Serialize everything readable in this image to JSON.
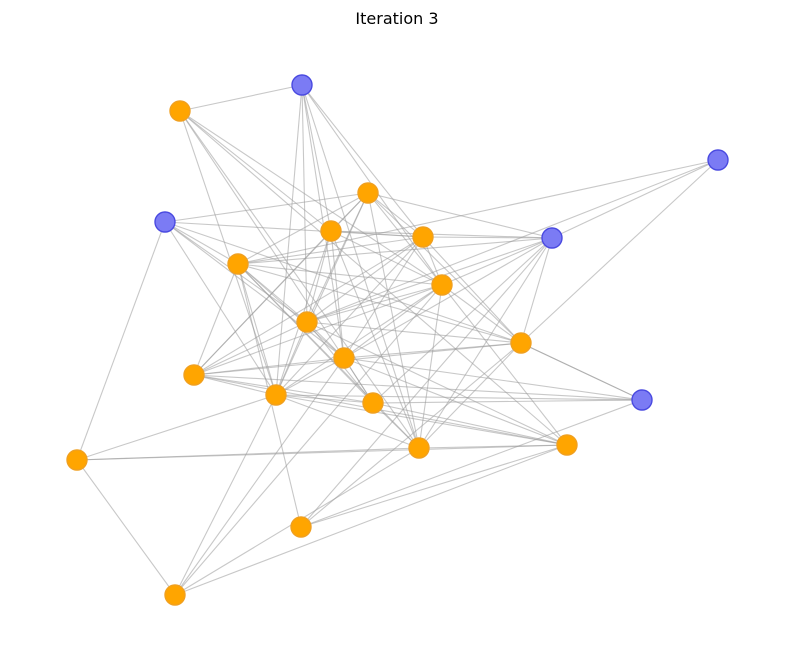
{
  "title": "Iteration 3",
  "colors": {
    "orange": "#ffa500",
    "orange_edge": "#f0a020",
    "blue": "#7b7bf4",
    "blue_edge": "#4a4ae0",
    "edge": "#9a9a9a"
  },
  "nodes": [
    {
      "id": "n0",
      "group": "blue"
    },
    {
      "id": "n1",
      "group": "orange"
    },
    {
      "id": "n2",
      "group": "blue"
    },
    {
      "id": "n3",
      "group": "orange"
    },
    {
      "id": "n4",
      "group": "orange"
    },
    {
      "id": "n5",
      "group": "orange"
    },
    {
      "id": "n6",
      "group": "blue"
    },
    {
      "id": "n7",
      "group": "blue"
    },
    {
      "id": "n8",
      "group": "orange"
    },
    {
      "id": "n9",
      "group": "orange"
    },
    {
      "id": "n10",
      "group": "orange"
    },
    {
      "id": "n11",
      "group": "orange"
    },
    {
      "id": "n12",
      "group": "orange"
    },
    {
      "id": "n13",
      "group": "orange"
    },
    {
      "id": "n14",
      "group": "orange"
    },
    {
      "id": "n15",
      "group": "blue"
    },
    {
      "id": "n16",
      "group": "orange"
    },
    {
      "id": "n17",
      "group": "orange"
    },
    {
      "id": "n18",
      "group": "orange"
    },
    {
      "id": "n19",
      "group": "orange"
    },
    {
      "id": "n20",
      "group": "orange"
    },
    {
      "id": "n21",
      "group": "orange"
    }
  ],
  "edges": [
    [
      "n0",
      "n1"
    ],
    [
      "n0",
      "n4"
    ],
    [
      "n0",
      "n9"
    ],
    [
      "n0",
      "n17"
    ],
    [
      "n0",
      "n5"
    ],
    [
      "n0",
      "n14"
    ],
    [
      "n0",
      "n12"
    ],
    [
      "n0",
      "n10"
    ],
    [
      "n1",
      "n4"
    ],
    [
      "n1",
      "n9"
    ],
    [
      "n1",
      "n12"
    ],
    [
      "n1",
      "n18"
    ],
    [
      "n1",
      "n17"
    ],
    [
      "n1",
      "n14"
    ],
    [
      "n2",
      "n3"
    ],
    [
      "n2",
      "n5"
    ],
    [
      "n2",
      "n8"
    ],
    [
      "n2",
      "n12"
    ],
    [
      "n2",
      "n19"
    ],
    [
      "n2",
      "n14"
    ],
    [
      "n2",
      "n10"
    ],
    [
      "n2",
      "n11"
    ],
    [
      "n3",
      "n4"
    ],
    [
      "n3",
      "n5"
    ],
    [
      "n3",
      "n6"
    ],
    [
      "n3",
      "n8"
    ],
    [
      "n3",
      "n10"
    ],
    [
      "n3",
      "n11"
    ],
    [
      "n3",
      "n14"
    ],
    [
      "n3",
      "n9"
    ],
    [
      "n3",
      "n17"
    ],
    [
      "n4",
      "n5"
    ],
    [
      "n4",
      "n6"
    ],
    [
      "n4",
      "n9"
    ],
    [
      "n4",
      "n10"
    ],
    [
      "n4",
      "n12"
    ],
    [
      "n4",
      "n14"
    ],
    [
      "n4",
      "n17"
    ],
    [
      "n5",
      "n6"
    ],
    [
      "n5",
      "n8"
    ],
    [
      "n5",
      "n9"
    ],
    [
      "n5",
      "n10"
    ],
    [
      "n5",
      "n11"
    ],
    [
      "n5",
      "n12"
    ],
    [
      "n5",
      "n13"
    ],
    [
      "n5",
      "n14"
    ],
    [
      "n6",
      "n7"
    ],
    [
      "n6",
      "n8"
    ],
    [
      "n6",
      "n9"
    ],
    [
      "n6",
      "n10"
    ],
    [
      "n6",
      "n11"
    ],
    [
      "n6",
      "n12"
    ],
    [
      "n6",
      "n16"
    ],
    [
      "n6",
      "n17"
    ],
    [
      "n6",
      "n20"
    ],
    [
      "n7",
      "n8"
    ],
    [
      "n7",
      "n11"
    ],
    [
      "n7",
      "n10"
    ],
    [
      "n8",
      "n9"
    ],
    [
      "n8",
      "n10"
    ],
    [
      "n8",
      "n11"
    ],
    [
      "n8",
      "n12"
    ],
    [
      "n8",
      "n14"
    ],
    [
      "n8",
      "n16"
    ],
    [
      "n8",
      "n17"
    ],
    [
      "n8",
      "n20"
    ],
    [
      "n9",
      "n10"
    ],
    [
      "n9",
      "n11"
    ],
    [
      "n9",
      "n12"
    ],
    [
      "n9",
      "n13"
    ],
    [
      "n9",
      "n14"
    ],
    [
      "n9",
      "n17"
    ],
    [
      "n9",
      "n18"
    ],
    [
      "n9",
      "n21"
    ],
    [
      "n10",
      "n11"
    ],
    [
      "n10",
      "n12"
    ],
    [
      "n10",
      "n13"
    ],
    [
      "n10",
      "n14"
    ],
    [
      "n10",
      "n18"
    ],
    [
      "n11",
      "n12"
    ],
    [
      "n11",
      "n13"
    ],
    [
      "n11",
      "n15"
    ],
    [
      "n11",
      "n17"
    ],
    [
      "n11",
      "n20"
    ],
    [
      "n12",
      "n13"
    ],
    [
      "n12",
      "n14"
    ],
    [
      "n12",
      "n15"
    ],
    [
      "n12",
      "n16"
    ],
    [
      "n12",
      "n18"
    ],
    [
      "n12",
      "n21"
    ],
    [
      "n13",
      "n14"
    ],
    [
      "n13",
      "n15"
    ],
    [
      "n13",
      "n16"
    ],
    [
      "n13",
      "n18"
    ],
    [
      "n14",
      "n15"
    ],
    [
      "n14",
      "n16"
    ],
    [
      "n14",
      "n17"
    ],
    [
      "n14",
      "n18"
    ],
    [
      "n14",
      "n19"
    ],
    [
      "n14",
      "n21"
    ],
    [
      "n15",
      "n16"
    ],
    [
      "n15",
      "n20"
    ],
    [
      "n15",
      "n11"
    ],
    [
      "n16",
      "n17"
    ],
    [
      "n16",
      "n18"
    ],
    [
      "n16",
      "n12"
    ],
    [
      "n17",
      "n18"
    ],
    [
      "n17",
      "n19"
    ],
    [
      "n17",
      "n21"
    ],
    [
      "n18",
      "n19"
    ],
    [
      "n18",
      "n21"
    ],
    [
      "n18",
      "n20"
    ],
    [
      "n19",
      "n21"
    ],
    [
      "n3",
      "n13"
    ],
    [
      "n4",
      "n13"
    ],
    [
      "n8",
      "n13"
    ],
    [
      "n10",
      "n16"
    ]
  ]
}
